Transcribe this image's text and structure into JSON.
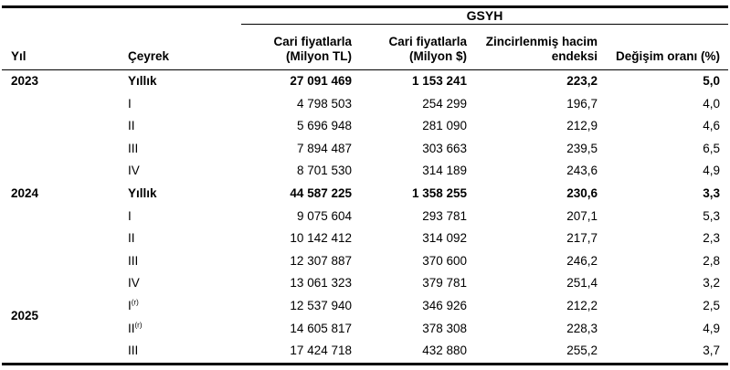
{
  "colors": {
    "text": "#000000",
    "background": "#ffffff",
    "rule": "#000000"
  },
  "table": {
    "span_header": "GSYH",
    "columns": {
      "year": "Yıl",
      "quarter": "Çeyrek",
      "current_tl": "Cari fiyatlarla\n(Milyon TL)",
      "current_usd": "Cari fiyatlarla\n(Milyon $)",
      "chained_index": "Zincirlenmiş hacim\nendeksi",
      "change_rate": "Değişim oranı (%)"
    },
    "groups": [
      {
        "year": "2023",
        "rows": [
          {
            "quarter": "Yıllık",
            "bold": true,
            "values": [
              "27 091 469",
              "1 153 241",
              "223,2",
              "5,0"
            ]
          },
          {
            "quarter": "I",
            "bold": false,
            "values": [
              "4 798 503",
              "254 299",
              "196,7",
              "4,0"
            ]
          },
          {
            "quarter": "II",
            "bold": false,
            "values": [
              "5 696 948",
              "281 090",
              "212,9",
              "4,6"
            ]
          },
          {
            "quarter": "III",
            "bold": false,
            "values": [
              "7 894 487",
              "303 663",
              "239,5",
              "6,5"
            ]
          },
          {
            "quarter": "IV",
            "bold": false,
            "values": [
              "8 701 530",
              "314 189",
              "243,6",
              "4,9"
            ]
          }
        ]
      },
      {
        "year": "2024",
        "rows": [
          {
            "quarter": "Yıllık",
            "bold": true,
            "values": [
              "44 587 225",
              "1 358 255",
              "230,6",
              "3,3"
            ]
          },
          {
            "quarter": "I",
            "bold": false,
            "values": [
              "9 075 604",
              "293 781",
              "207,1",
              "5,3"
            ]
          },
          {
            "quarter": "II",
            "bold": false,
            "values": [
              "10 142 412",
              "314 092",
              "217,7",
              "2,3"
            ]
          },
          {
            "quarter": "III",
            "bold": false,
            "values": [
              "12 307 887",
              "370 600",
              "246,2",
              "2,8"
            ]
          },
          {
            "quarter": "IV",
            "bold": false,
            "values": [
              "13 061 323",
              "379 781",
              "251,4",
              "3,2"
            ]
          }
        ]
      },
      {
        "year": "2025",
        "rows": [
          {
            "quarter": "I",
            "quarter_sup": "(r)",
            "bold": false,
            "values": [
              "12 537 940",
              "346 926",
              "212,2",
              "2,5"
            ]
          },
          {
            "quarter": "II",
            "quarter_sup": "(r)",
            "bold": false,
            "values": [
              "14 605 817",
              "378 308",
              "228,3",
              "4,9"
            ]
          },
          {
            "quarter": "III",
            "bold": false,
            "values": [
              "17 424 718",
              "432 880",
              "255,2",
              "3,7"
            ]
          }
        ]
      }
    ]
  }
}
